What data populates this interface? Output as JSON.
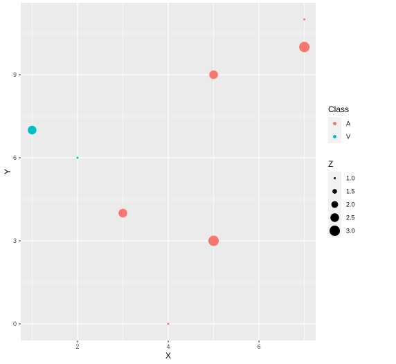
{
  "chart_data": {
    "type": "scatter",
    "xlabel": "X",
    "ylabel": "Y",
    "xlim": [
      0.75,
      7.25
    ],
    "ylim": [
      -0.6,
      11.6
    ],
    "x_ticks": [
      2,
      4,
      6
    ],
    "y_ticks": [
      0,
      3,
      6,
      9
    ],
    "x_tick_labels": [
      "2",
      "4",
      "6"
    ],
    "y_tick_labels": [
      "0",
      "3",
      "6",
      "9"
    ],
    "grid": true,
    "background": "#ebebeb",
    "points": [
      {
        "x": 1,
        "y": 7,
        "class": "V",
        "z": 2.5
      },
      {
        "x": 2,
        "y": 6,
        "class": "V",
        "z": 1.0
      },
      {
        "x": 3,
        "y": 4,
        "class": "A",
        "z": 2.5
      },
      {
        "x": 4,
        "y": 0,
        "class": "A",
        "z": 1.0
      },
      {
        "x": 5,
        "y": 3,
        "class": "A",
        "z": 3.0
      },
      {
        "x": 5,
        "y": 9,
        "class": "A",
        "z": 2.5
      },
      {
        "x": 7,
        "y": 10,
        "class": "A",
        "z": 3.0
      },
      {
        "x": 7,
        "y": 11,
        "class": "A",
        "z": 1.0
      }
    ],
    "legend": {
      "placement": "right",
      "color": {
        "title": "Class",
        "entries": [
          {
            "label": "A",
            "color": "#f8766d"
          },
          {
            "label": "V",
            "color": "#00bfc4"
          }
        ]
      },
      "size": {
        "title": "Z",
        "entries": [
          {
            "label": "1.0",
            "value": 1.0
          },
          {
            "label": "1.5",
            "value": 1.5
          },
          {
            "label": "2.0",
            "value": 2.0
          },
          {
            "label": "2.5",
            "value": 2.5
          },
          {
            "label": "3.0",
            "value": 3.0
          }
        ]
      }
    }
  }
}
